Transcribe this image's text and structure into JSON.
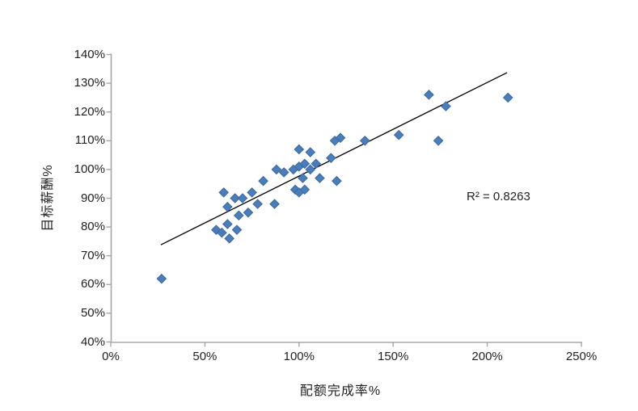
{
  "chart_data": {
    "type": "scatter",
    "title": "",
    "xlabel": "配额完成率%",
    "ylabel": "目标薪酬%",
    "xlim": [
      0,
      250
    ],
    "ylim": [
      40,
      140
    ],
    "grid": false,
    "legend": "none",
    "x_ticks": [
      "0%",
      "50%",
      "100%",
      "150%",
      "200%",
      "250%"
    ],
    "x_tick_values": [
      0,
      50,
      100,
      150,
      200,
      250
    ],
    "y_ticks": [
      "40%",
      "50%",
      "60%",
      "70%",
      "80%",
      "90%",
      "100%",
      "110%",
      "120%",
      "130%",
      "140%"
    ],
    "y_tick_values": [
      40,
      50,
      60,
      70,
      80,
      90,
      100,
      110,
      120,
      130,
      140
    ],
    "annotation": "R² = 0.8263",
    "series": [
      {
        "name": "scatter-points",
        "marker": "diamond",
        "points": [
          [
            27,
            62
          ],
          [
            56,
            79
          ],
          [
            59,
            78
          ],
          [
            60,
            92
          ],
          [
            62,
            87
          ],
          [
            62,
            81
          ],
          [
            63,
            76
          ],
          [
            66,
            90
          ],
          [
            67,
            79
          ],
          [
            68,
            84
          ],
          [
            70,
            90
          ],
          [
            73,
            85
          ],
          [
            75,
            92
          ],
          [
            78,
            88
          ],
          [
            81,
            96
          ],
          [
            87,
            88
          ],
          [
            88,
            100
          ],
          [
            92,
            99
          ],
          [
            97,
            100
          ],
          [
            98,
            93
          ],
          [
            100,
            92
          ],
          [
            100,
            101
          ],
          [
            100,
            107
          ],
          [
            102,
            97
          ],
          [
            103,
            93
          ],
          [
            103,
            102
          ],
          [
            106,
            100
          ],
          [
            106,
            106
          ],
          [
            109,
            102
          ],
          [
            111,
            97
          ],
          [
            117,
            104
          ],
          [
            119,
            110
          ],
          [
            120,
            96
          ],
          [
            122,
            111
          ],
          [
            135,
            110
          ],
          [
            153,
            112
          ],
          [
            169,
            126
          ],
          [
            174,
            110
          ],
          [
            178,
            122
          ],
          [
            211,
            125
          ]
        ]
      }
    ],
    "trendline": {
      "x1": 26.6,
      "y1": 73.8,
      "x2": 210.5,
      "y2": 133.7
    }
  },
  "colors": {
    "marker_fill": "#4A7EBB",
    "marker_stroke": "#3A67A0",
    "axis": "#A6A6A6",
    "trendline": "#000000",
    "text": "#1F1F1F",
    "background": "#FFFFFF"
  }
}
